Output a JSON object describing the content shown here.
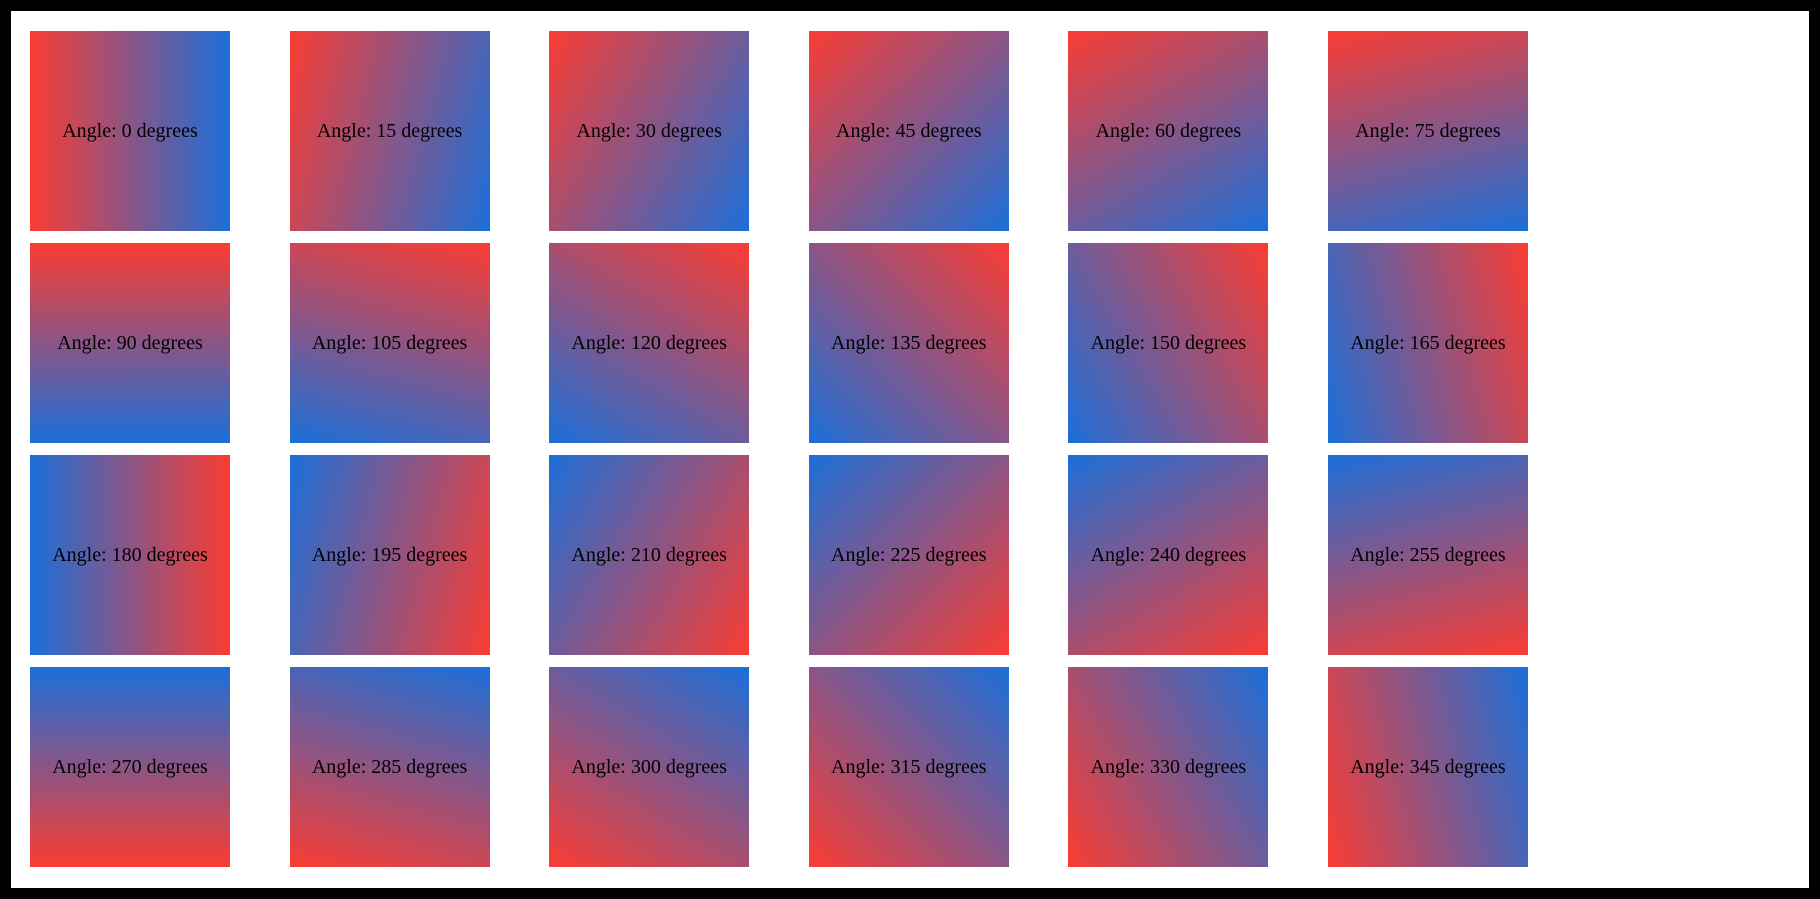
{
  "page": {
    "background_color": "#ffffff",
    "frame_color": "#000000"
  },
  "gradient": {
    "start_color": "#fa3c32",
    "end_color": "#1b6fd9",
    "css_angle_offset_deg": 90
  },
  "tiles": [
    {
      "angle": 0,
      "label": "Angle: 0 degrees"
    },
    {
      "angle": 15,
      "label": "Angle: 15 degrees"
    },
    {
      "angle": 30,
      "label": "Angle: 30 degrees"
    },
    {
      "angle": 45,
      "label": "Angle: 45 degrees"
    },
    {
      "angle": 60,
      "label": "Angle: 60 degrees"
    },
    {
      "angle": 75,
      "label": "Angle: 75 degrees"
    },
    {
      "angle": 90,
      "label": "Angle: 90 degrees"
    },
    {
      "angle": 105,
      "label": "Angle: 105 degrees"
    },
    {
      "angle": 120,
      "label": "Angle: 120 degrees"
    },
    {
      "angle": 135,
      "label": "Angle: 135 degrees"
    },
    {
      "angle": 150,
      "label": "Angle: 150 degrees"
    },
    {
      "angle": 165,
      "label": "Angle: 165 degrees"
    },
    {
      "angle": 180,
      "label": "Angle: 180 degrees"
    },
    {
      "angle": 195,
      "label": "Angle: 195 degrees"
    },
    {
      "angle": 210,
      "label": "Angle: 210 degrees"
    },
    {
      "angle": 225,
      "label": "Angle: 225 degrees"
    },
    {
      "angle": 240,
      "label": "Angle: 240 degrees"
    },
    {
      "angle": 255,
      "label": "Angle: 255 degrees"
    },
    {
      "angle": 270,
      "label": "Angle: 270 degrees"
    },
    {
      "angle": 285,
      "label": "Angle: 285 degrees"
    },
    {
      "angle": 300,
      "label": "Angle: 300 degrees"
    },
    {
      "angle": 315,
      "label": "Angle: 315 degrees"
    },
    {
      "angle": 330,
      "label": "Angle: 330 degrees"
    },
    {
      "angle": 345,
      "label": "Angle: 345 degrees"
    }
  ]
}
